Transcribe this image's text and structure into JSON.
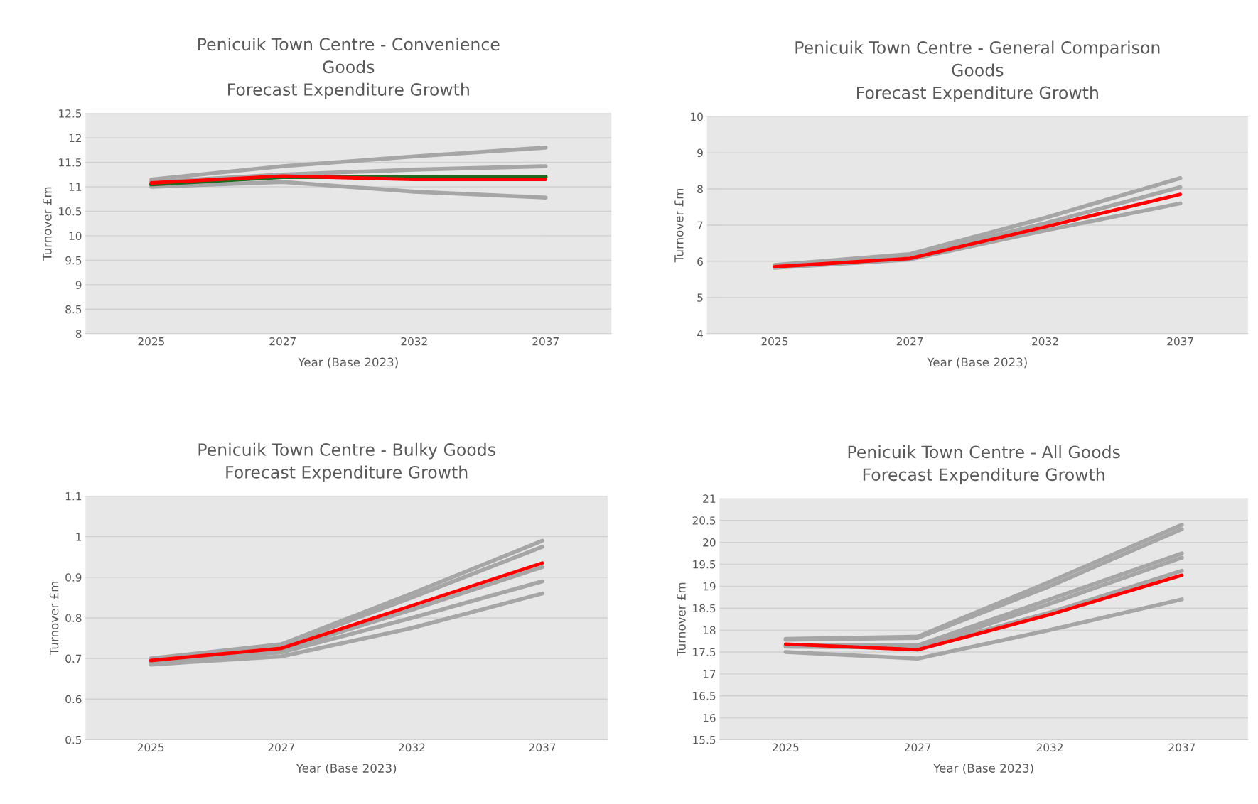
{
  "chart_data": [
    {
      "type": "line",
      "title": "Penicuik Town Centre - Convenience\nGoods\nForecast Expenditure Growth",
      "xlabel": "Year (Base 2023)",
      "ylabel": "Turnover £m",
      "categories": [
        "2025",
        "2027",
        "2032",
        "2037"
      ],
      "ylim": [
        8,
        12.5
      ],
      "yticks": [
        8,
        8.5,
        9,
        9.5,
        10,
        10.5,
        11,
        11.5,
        12,
        12.5
      ],
      "grid": "y",
      "legend": false,
      "series": [
        {
          "color": "#a6a6a6",
          "values": [
            11.15,
            11.42,
            11.62,
            11.8
          ]
        },
        {
          "color": "#a6a6a6",
          "values": [
            11.1,
            11.25,
            11.35,
            11.42
          ]
        },
        {
          "color": "#a6a6a6",
          "values": [
            11.0,
            11.1,
            10.9,
            10.78
          ]
        },
        {
          "color": "#1e6b1e",
          "values": [
            11.05,
            11.2,
            null,
            11.2
          ]
        },
        {
          "color": "#ff0000",
          "values": [
            11.08,
            11.22,
            11.15,
            11.15
          ]
        }
      ]
    },
    {
      "type": "line",
      "title": "Penicuik Town Centre - General Comparison\nGoods\nForecast Expenditure Growth",
      "xlabel": "Year (Base 2023)",
      "ylabel": "Turnover £m",
      "categories": [
        "2025",
        "2027",
        "2032",
        "2037"
      ],
      "ylim": [
        4,
        10
      ],
      "yticks": [
        4,
        5,
        6,
        7,
        8,
        9,
        10
      ],
      "grid": "y",
      "legend": false,
      "series": [
        {
          "color": "#a6a6a6",
          "values": [
            5.9,
            6.2,
            7.2,
            8.3
          ]
        },
        {
          "color": "#a6a6a6",
          "values": [
            5.88,
            6.15,
            7.05,
            8.05
          ]
        },
        {
          "color": "#a6a6a6",
          "values": [
            5.82,
            6.05,
            6.85,
            7.6
          ]
        },
        {
          "color": "#ff0000",
          "values": [
            5.85,
            6.08,
            6.95,
            7.85
          ]
        }
      ]
    },
    {
      "type": "line",
      "title": "Penicuik Town Centre - Bulky Goods\nForecast Expenditure Growth",
      "xlabel": "Year (Base 2023)",
      "ylabel": "Turnover £m",
      "categories": [
        "2025",
        "2027",
        "2032",
        "2037"
      ],
      "ylim": [
        0.5,
        1.1
      ],
      "yticks": [
        0.5,
        0.6,
        0.7,
        0.8,
        0.9,
        1,
        1.1
      ],
      "grid": "y",
      "legend": false,
      "series": [
        {
          "color": "#a6a6a6",
          "values": [
            0.7,
            0.735,
            0.86,
            0.99
          ]
        },
        {
          "color": "#a6a6a6",
          "values": [
            0.695,
            0.73,
            0.85,
            0.975
          ]
        },
        {
          "color": "#a6a6a6",
          "values": [
            0.69,
            0.72,
            0.82,
            0.925
          ]
        },
        {
          "color": "#a6a6a6",
          "values": [
            0.69,
            0.715,
            0.8,
            0.89
          ]
        },
        {
          "color": "#a6a6a6",
          "values": [
            0.685,
            0.705,
            0.775,
            0.86
          ]
        },
        {
          "color": "#ff0000",
          "values": [
            0.695,
            0.725,
            0.83,
            0.935
          ]
        }
      ]
    },
    {
      "type": "line",
      "title": "Penicuik Town Centre - All Goods\nForecast Expenditure Growth",
      "xlabel": "Year (Base 2023)",
      "ylabel": "Turnover £m",
      "categories": [
        "2025",
        "2027",
        "2032",
        "2037"
      ],
      "ylim": [
        15.5,
        21
      ],
      "yticks": [
        15.5,
        16,
        16.5,
        17,
        17.5,
        18,
        18.5,
        19,
        19.5,
        20,
        20.5,
        21
      ],
      "grid": "y",
      "legend": false,
      "series": [
        {
          "color": "#a6a6a6",
          "values": [
            17.8,
            17.85,
            19.1,
            20.4
          ]
        },
        {
          "color": "#a6a6a6",
          "values": [
            17.78,
            17.82,
            19.0,
            20.3
          ]
        },
        {
          "color": "#a6a6a6",
          "values": [
            17.65,
            17.65,
            18.7,
            19.75
          ]
        },
        {
          "color": "#a6a6a6",
          "values": [
            17.62,
            17.6,
            18.6,
            19.65
          ]
        },
        {
          "color": "#a6a6a6",
          "values": [
            17.65,
            17.58,
            18.4,
            19.35
          ]
        },
        {
          "color": "#a6a6a6",
          "values": [
            17.5,
            17.35,
            18.0,
            18.7
          ]
        },
        {
          "color": "#ff0000",
          "values": [
            17.68,
            17.55,
            18.35,
            19.25
          ]
        }
      ]
    }
  ]
}
